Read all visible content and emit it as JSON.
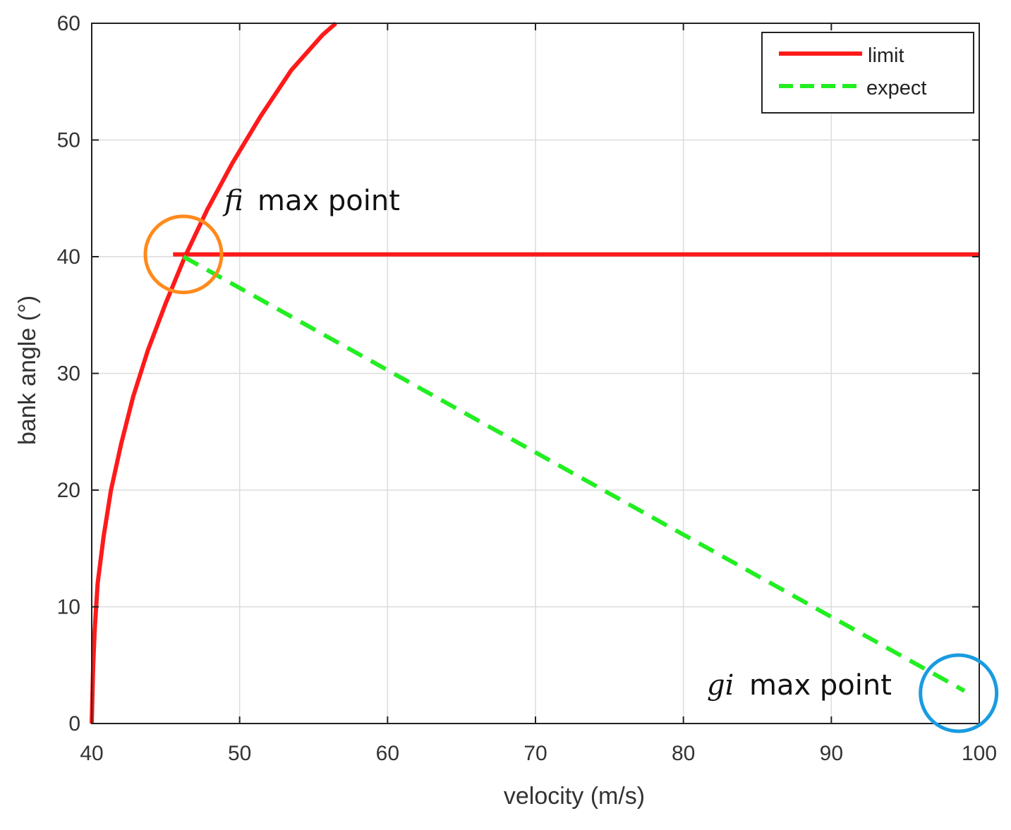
{
  "chart_data": {
    "type": "line",
    "xlabel": "velocity (m/s)",
    "ylabel": "bank angle (°)",
    "xlim": [
      40,
      100
    ],
    "ylim": [
      0,
      60
    ],
    "xticks": [
      "40",
      "50",
      "60",
      "70",
      "80",
      "90",
      "100"
    ],
    "yticks": [
      "0",
      "10",
      "20",
      "30",
      "40",
      "50",
      "60"
    ],
    "grid": true,
    "legend_position": "top-right",
    "series": [
      {
        "name": "limit",
        "color": "#ff1a1a",
        "style": "solid",
        "x": [
          40.0,
          40.1,
          40.2,
          40.4,
          40.8,
          41.3,
          42.0,
          42.8,
          43.8,
          45.0,
          46.3,
          47.8,
          49.5,
          51.4,
          53.5,
          55.6,
          56.5
        ],
        "y": [
          0,
          5,
          8,
          12,
          16,
          20,
          24,
          28,
          32,
          36,
          40,
          44,
          48,
          52,
          56,
          59,
          60
        ]
      },
      {
        "name": "limit",
        "color": "#ff1a1a",
        "style": "solid",
        "x": [
          45.5,
          100
        ],
        "y": [
          40.2,
          40.2
        ]
      },
      {
        "name": "expect",
        "color": "#22ee22",
        "style": "dashed",
        "x": [
          46.2,
          99
        ],
        "y": [
          40.0,
          2.8
        ]
      }
    ],
    "annotations": [
      {
        "italic": "fi",
        "text": "max point",
        "circle_color": "#ff8a1c",
        "circle_x": 46.2,
        "circle_y": 40.2
      },
      {
        "italic": "gi",
        "text": "max point",
        "circle_color": "#1a9be0",
        "circle_x": 98.6,
        "circle_y": 2.6
      }
    ]
  }
}
